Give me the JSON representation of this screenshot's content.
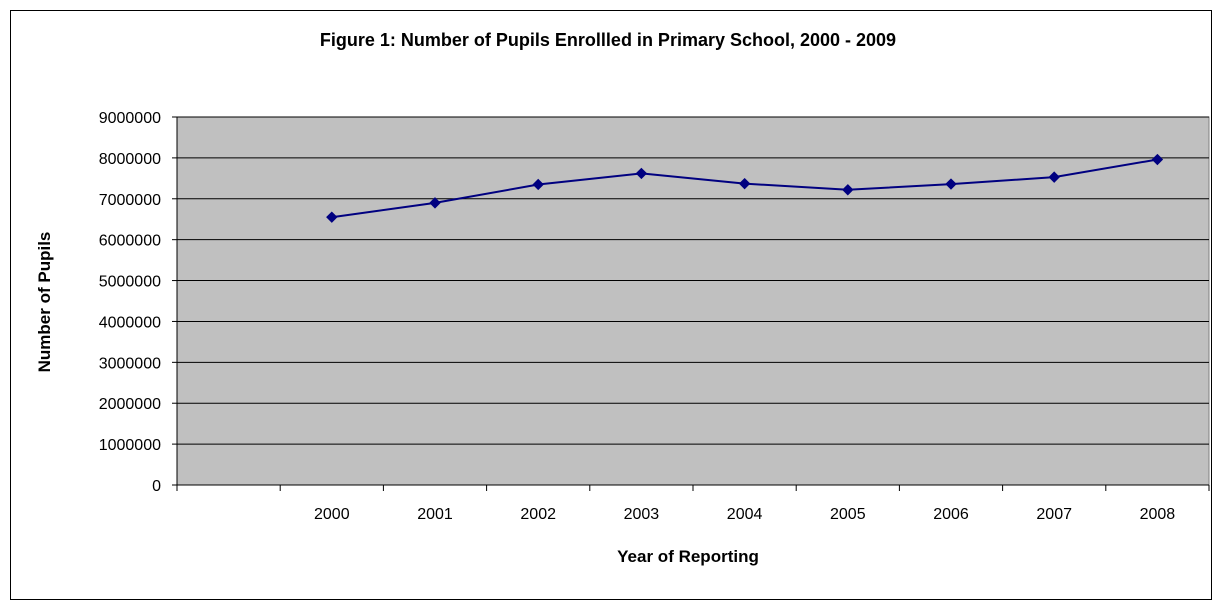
{
  "chart_data": {
    "type": "line",
    "title": "Figure 1: Number of Pupils Enrollled in Primary School, 2000 - 2009",
    "xlabel": "Year of Reporting",
    "ylabel": "Number of Pupils",
    "categories": [
      "",
      "2000",
      "2001",
      "2002",
      "2003",
      "2004",
      "2005",
      "2006",
      "2007",
      "2008"
    ],
    "series": [
      {
        "values": [
          null,
          6550000,
          6900000,
          7350000,
          7620000,
          7370000,
          7220000,
          7360000,
          7530000,
          7960000
        ]
      }
    ],
    "ylim": [
      0,
      9000000
    ],
    "yticks": [
      0,
      1000000,
      2000000,
      3000000,
      4000000,
      5000000,
      6000000,
      7000000,
      8000000,
      9000000
    ],
    "grid": true,
    "legend": "none",
    "colors": {
      "plot_background": "#C0C0C0",
      "line": "#000080",
      "gridline": "#000000"
    }
  }
}
